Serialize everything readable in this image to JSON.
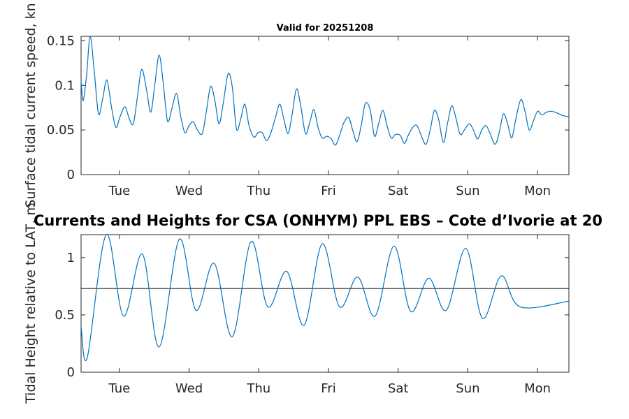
{
  "chart_data": [
    {
      "type": "line",
      "title": "Valid for 20251208",
      "ylabel": "Surface tidal current speed, kn",
      "xlabel": "",
      "categories": [
        "Tue",
        "Wed",
        "Thu",
        "Fri",
        "Sat",
        "Sun",
        "Mon"
      ],
      "xlim": [
        0,
        7
      ],
      "ylim": [
        0,
        0.155
      ],
      "yticks": [
        0,
        0.05,
        0.1,
        0.15
      ],
      "ytick_labels": [
        "0",
        "0.05",
        "0.1",
        "0.15"
      ],
      "series": [
        {
          "name": "Surface tidal current speed",
          "color": "#0072bd",
          "x": [
            0,
            0.03,
            0.08,
            0.13,
            0.19,
            0.25,
            0.31,
            0.37,
            0.44,
            0.5,
            0.56,
            0.63,
            0.69,
            0.75,
            0.81,
            0.87,
            0.94,
            1.0,
            1.06,
            1.12,
            1.18,
            1.24,
            1.3,
            1.37,
            1.43,
            1.49,
            1.55,
            1.61,
            1.67,
            1.74,
            1.8,
            1.86,
            1.92,
            1.98,
            2.04,
            2.11,
            2.17,
            2.23,
            2.29,
            2.35,
            2.41,
            2.48,
            2.54,
            2.6,
            2.66,
            2.72,
            2.79,
            2.85,
            2.91,
            2.97,
            3.03,
            3.09,
            3.15,
            3.22,
            3.28,
            3.34,
            3.4,
            3.46,
            3.53,
            3.59,
            3.65,
            3.71,
            3.77,
            3.84,
            3.9,
            3.96,
            4.02,
            4.08,
            4.15,
            4.21,
            4.27,
            4.33,
            4.39,
            4.45,
            4.51,
            4.58,
            4.64,
            4.7,
            4.76,
            4.82,
            4.89,
            4.95,
            5.01,
            5.07,
            5.13,
            5.2,
            5.26,
            5.32,
            5.38,
            5.44,
            5.5,
            5.57,
            5.63,
            5.69,
            5.75,
            5.81,
            5.87,
            5.94,
            6.0,
            6.06,
            6.12,
            6.18,
            6.24,
            6.31,
            6.37,
            6.43,
            6.49,
            6.55,
            6.61,
            6.68,
            6.74,
            6.8,
            6.86,
            6.92,
            7.0
          ],
          "values": [
            0.105,
            0.083,
            0.112,
            0.155,
            0.115,
            0.068,
            0.085,
            0.106,
            0.074,
            0.053,
            0.065,
            0.076,
            0.063,
            0.057,
            0.088,
            0.118,
            0.095,
            0.07,
            0.102,
            0.134,
            0.102,
            0.06,
            0.073,
            0.091,
            0.065,
            0.047,
            0.055,
            0.059,
            0.05,
            0.046,
            0.072,
            0.099,
            0.083,
            0.057,
            0.08,
            0.113,
            0.098,
            0.051,
            0.062,
            0.079,
            0.055,
            0.042,
            0.047,
            0.047,
            0.038,
            0.046,
            0.064,
            0.079,
            0.062,
            0.046,
            0.068,
            0.096,
            0.078,
            0.046,
            0.058,
            0.073,
            0.053,
            0.041,
            0.043,
            0.04,
            0.033,
            0.044,
            0.058,
            0.064,
            0.049,
            0.037,
            0.055,
            0.08,
            0.072,
            0.043,
            0.057,
            0.072,
            0.055,
            0.041,
            0.045,
            0.044,
            0.035,
            0.045,
            0.053,
            0.055,
            0.042,
            0.034,
            0.05,
            0.072,
            0.062,
            0.036,
            0.058,
            0.077,
            0.063,
            0.045,
            0.05,
            0.057,
            0.05,
            0.04,
            0.05,
            0.055,
            0.046,
            0.034,
            0.047,
            0.068,
            0.057,
            0.041,
            0.063,
            0.084,
            0.071,
            0.05,
            0.06,
            0.071,
            0.067,
            0.07,
            0.071,
            0.07,
            0.068,
            0.066,
            0.065
          ]
        }
      ]
    },
    {
      "type": "line",
      "title": "Currents and Heights for CSA (ONHYM) PPL EBS  – Cote d’Ivorie at 20",
      "ylabel": "Tidal Height relative to LAT, m",
      "xlabel": "",
      "categories": [
        "Tue",
        "Wed",
        "Thu",
        "Fri",
        "Sat",
        "Sun",
        "Mon"
      ],
      "xlim": [
        0,
        7
      ],
      "ylim": [
        0,
        1.2
      ],
      "yticks": [
        0,
        0.5,
        1
      ],
      "ytick_labels": [
        "0",
        "0.5",
        "1"
      ],
      "reference_line": {
        "y": 0.73,
        "color": "#000000"
      },
      "series": [
        {
          "name": "Tidal height",
          "color": "#0072bd",
          "x": [
            0,
            0.09,
            0.36,
            0.61,
            0.88,
            1.12,
            1.41,
            1.65,
            1.91,
            2.17,
            2.44,
            2.68,
            2.95,
            3.2,
            3.46,
            3.71,
            3.97,
            4.22,
            4.49,
            4.73,
            4.99,
            5.24,
            5.52,
            5.76,
            6.03,
            6.3,
            7.0
          ],
          "values": [
            0.4,
            0.13,
            1.2,
            0.49,
            1.03,
            0.22,
            1.16,
            0.54,
            0.95,
            0.31,
            1.14,
            0.57,
            0.88,
            0.41,
            1.12,
            0.57,
            0.83,
            0.49,
            1.1,
            0.53,
            0.82,
            0.54,
            1.08,
            0.47,
            0.84,
            0.57,
            0.62
          ]
        }
      ]
    }
  ]
}
